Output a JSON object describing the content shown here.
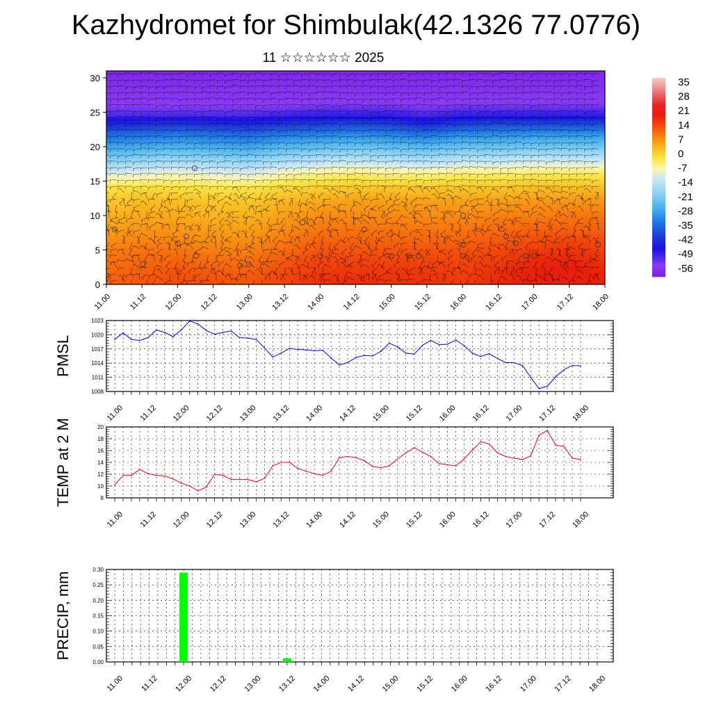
{
  "title": "Kazhydromet for Shimbulak(42.1326 77.0776)",
  "subtitle": "11 ☆☆☆☆☆☆ 2025",
  "time_ticks": [
    "11.00",
    "11.12",
    "12.00",
    "12.12",
    "13.00",
    "13.12",
    "14.00",
    "14.12",
    "15.00",
    "15.12",
    "16.00",
    "16.12",
    "17.00",
    "17.12",
    "18.00"
  ],
  "chart_data": [
    {
      "type": "heatmap",
      "name": "cross-section",
      "x_ticks": [
        "11.00",
        "11.12",
        "12.00",
        "12.12",
        "13.00",
        "13.12",
        "14.00",
        "14.12",
        "15.00",
        "15.12",
        "16.00",
        "16.12",
        "17.00",
        "17.12",
        "18.00"
      ],
      "y_ticks": [
        "0",
        "5",
        "10",
        "15",
        "20",
        "25",
        "30"
      ],
      "ylim": [
        0,
        31
      ],
      "colorbar_labels": [
        "35",
        "28",
        "21",
        "14",
        "7",
        "0",
        "-7",
        "-14",
        "-21",
        "-28",
        "-35",
        "-42",
        "-49",
        "-56"
      ],
      "colorbar_colors": [
        "#f6c8c8",
        "#f08080",
        "#e52222",
        "#e81f0a",
        "#f24a0a",
        "#f7800f",
        "#f9b41c",
        "#fbe545",
        "#fdf6b0",
        "#c8e6f6",
        "#4ab4ec",
        "#1e78e6",
        "#1e3cd6",
        "#1a10e8",
        "#6a2ae6",
        "#8a3cf2"
      ],
      "rows_bottom_to_top": [
        {
          "z": 0,
          "values": [
            10,
            11,
            12,
            12,
            11,
            13,
            15,
            16,
            15,
            15,
            14,
            16,
            18,
            19,
            17
          ]
        },
        {
          "z": 2,
          "values": [
            9,
            10,
            11,
            10,
            10,
            12,
            14,
            14,
            14,
            14,
            13,
            15,
            17,
            18,
            16
          ]
        },
        {
          "z": 4,
          "values": [
            8,
            9,
            9,
            8,
            8,
            10,
            12,
            12,
            12,
            12,
            12,
            13,
            15,
            16,
            14
          ]
        },
        {
          "z": 6,
          "values": [
            6,
            7,
            7,
            6,
            6,
            8,
            10,
            10,
            10,
            10,
            10,
            11,
            12,
            13,
            12
          ]
        },
        {
          "z": 8,
          "values": [
            4,
            5,
            5,
            4,
            4,
            6,
            8,
            8,
            8,
            8,
            8,
            9,
            10,
            10,
            10
          ]
        },
        {
          "z": 10,
          "values": [
            2,
            3,
            3,
            2,
            2,
            4,
            6,
            6,
            6,
            6,
            6,
            7,
            7,
            8,
            8
          ]
        },
        {
          "z": 12,
          "values": [
            0,
            1,
            1,
            0,
            0,
            2,
            3,
            4,
            4,
            4,
            4,
            4,
            5,
            5,
            5
          ]
        },
        {
          "z": 14,
          "values": [
            -4,
            -3,
            -3,
            -4,
            -4,
            -2,
            -1,
            0,
            0,
            0,
            0,
            0,
            1,
            1,
            1
          ]
        },
        {
          "z": 16,
          "values": [
            -12,
            -11,
            -10,
            -11,
            -12,
            -9,
            -7,
            -6,
            -7,
            -7,
            -6,
            -6,
            -5,
            -5,
            -5
          ]
        },
        {
          "z": 18,
          "values": [
            -22,
            -20,
            -19,
            -20,
            -21,
            -18,
            -16,
            -15,
            -16,
            -17,
            -15,
            -15,
            -14,
            -14,
            -14
          ]
        },
        {
          "z": 20,
          "values": [
            -30,
            -29,
            -28,
            -29,
            -30,
            -27,
            -26,
            -25,
            -26,
            -27,
            -25,
            -25,
            -24,
            -24,
            -24
          ]
        },
        {
          "z": 22,
          "values": [
            -38,
            -37,
            -36,
            -37,
            -38,
            -36,
            -35,
            -34,
            -35,
            -37,
            -34,
            -34,
            -33,
            -33,
            -33
          ]
        },
        {
          "z": 23.5,
          "values": [
            -46,
            -45,
            -44,
            -45,
            -46,
            -44,
            -43,
            -42,
            -43,
            -46,
            -43,
            -42,
            -42,
            -42,
            -42
          ]
        },
        {
          "z": 24.5,
          "values": [
            -52,
            -52,
            -52,
            -52,
            -52,
            -51,
            -50,
            -50,
            -50,
            -52,
            -50,
            -50,
            -50,
            -50,
            -50
          ]
        },
        {
          "z": 26,
          "values": [
            -56,
            -56,
            -56,
            -56,
            -56,
            -56,
            -55,
            -55,
            -55,
            -56,
            -55,
            -55,
            -55,
            -55,
            -55
          ]
        },
        {
          "z": 28,
          "values": [
            -58,
            -58,
            -58,
            -58,
            -58,
            -58,
            -58,
            -58,
            -58,
            -58,
            -58,
            -58,
            -58,
            -58,
            -58
          ]
        },
        {
          "z": 31,
          "values": [
            -60,
            -60,
            -60,
            -60,
            -60,
            -60,
            -60,
            -60,
            -60,
            -60,
            -60,
            -60,
            -60,
            -60,
            -60
          ]
        }
      ]
    },
    {
      "type": "line",
      "ylabel": "PMSL",
      "ylim": [
        1008,
        1023
      ],
      "y_ticks": [
        "1008",
        "1011",
        "1014",
        "1017",
        "1020",
        "1023"
      ],
      "x_ticks": [
        "11.00",
        "11.12",
        "12.00",
        "12.12",
        "13.00",
        "13.12",
        "14.00",
        "14.12",
        "15.00",
        "15.12",
        "16.00",
        "16.12",
        "17.00",
        "17.12",
        "18.00"
      ],
      "color": "#0000ff",
      "x_hours": [
        0,
        3,
        6,
        9,
        12,
        15,
        18,
        21,
        24,
        27,
        30,
        33,
        36,
        39,
        42,
        45,
        48,
        51,
        54,
        57,
        60,
        63,
        66,
        69,
        72,
        75,
        78,
        81,
        84,
        87,
        90,
        93,
        96,
        99,
        102,
        105,
        108,
        111,
        114,
        117,
        120,
        123,
        126,
        129,
        132,
        135,
        138,
        141,
        144,
        147,
        150,
        153,
        156,
        159,
        162,
        165,
        168
      ],
      "values": [
        1019.0,
        1020.4,
        1019.0,
        1018.8,
        1019.4,
        1021.0,
        1020.5,
        1019.6,
        1021.0,
        1022.9,
        1022.3,
        1020.9,
        1020.1,
        1020.5,
        1020.8,
        1019.4,
        1019.3,
        1019.0,
        1017.2,
        1015.3,
        1016.1,
        1017.1,
        1016.9,
        1016.8,
        1016.6,
        1016.7,
        1015.1,
        1013.6,
        1014.1,
        1015.2,
        1015.6,
        1015.5,
        1016.5,
        1018.2,
        1017.4,
        1016.1,
        1015.9,
        1017.8,
        1018.8,
        1017.9,
        1018.0,
        1018.9,
        1017.7,
        1016.1,
        1015.4,
        1016.0,
        1015.0,
        1014.1,
        1014.1,
        1013.5,
        1011.0,
        1008.6,
        1009.1,
        1011.1,
        1012.6,
        1013.5,
        1013.4
      ]
    },
    {
      "type": "line",
      "ylabel": "TEMP at 2 M",
      "ylim": [
        8,
        20
      ],
      "y_ticks": [
        "8",
        "10",
        "12",
        "14",
        "16",
        "18",
        "20"
      ],
      "x_ticks": [
        "11.00",
        "11.12",
        "12.00",
        "12.12",
        "13.00",
        "13.12",
        "14.00",
        "14.12",
        "15.00",
        "15.12",
        "16.00",
        "16.12",
        "17.00",
        "17.12",
        "18.00"
      ],
      "color": "#ff0000",
      "x_hours": [
        0,
        3,
        6,
        9,
        12,
        15,
        18,
        21,
        24,
        27,
        30,
        33,
        36,
        39,
        42,
        45,
        48,
        51,
        54,
        57,
        60,
        63,
        66,
        69,
        72,
        75,
        78,
        81,
        84,
        87,
        90,
        93,
        96,
        99,
        102,
        105,
        108,
        111,
        114,
        117,
        120,
        123,
        126,
        129,
        132,
        135,
        138,
        141,
        144,
        147,
        150,
        153,
        156,
        159,
        162,
        165,
        168
      ],
      "values": [
        10.2,
        11.8,
        11.8,
        12.8,
        12.1,
        11.8,
        11.7,
        11.2,
        10.5,
        10.0,
        9.2,
        9.8,
        12.0,
        11.8,
        11.1,
        11.1,
        11.1,
        10.7,
        11.3,
        13.4,
        14.0,
        14.0,
        13.0,
        12.5,
        12.1,
        11.8,
        12.5,
        14.8,
        15.0,
        14.8,
        14.3,
        13.3,
        13.1,
        13.4,
        14.6,
        15.6,
        16.5,
        15.7,
        15.0,
        13.8,
        13.6,
        13.4,
        14.6,
        16.1,
        17.5,
        17.1,
        15.6,
        15.0,
        14.7,
        14.5,
        15.1,
        18.6,
        19.4,
        16.9,
        16.7,
        14.7,
        14.5
      ]
    },
    {
      "type": "bar",
      "ylabel": "PRECIP, mm",
      "ylim": [
        0,
        0.3
      ],
      "y_ticks": [
        "0.00",
        "0.05",
        "0.10",
        "0.15",
        "0.20",
        "0.25",
        "0.30"
      ],
      "x_ticks": [
        "11.00",
        "11.12",
        "12.00",
        "12.12",
        "13.00",
        "13.12",
        "14.00",
        "14.12",
        "15.00",
        "15.12",
        "16.00",
        "16.12",
        "17.00",
        "17.12",
        "18.00"
      ],
      "color": "#00ff00",
      "x_hours": [
        24,
        60
      ],
      "values": [
        0.29,
        0.012
      ]
    }
  ]
}
